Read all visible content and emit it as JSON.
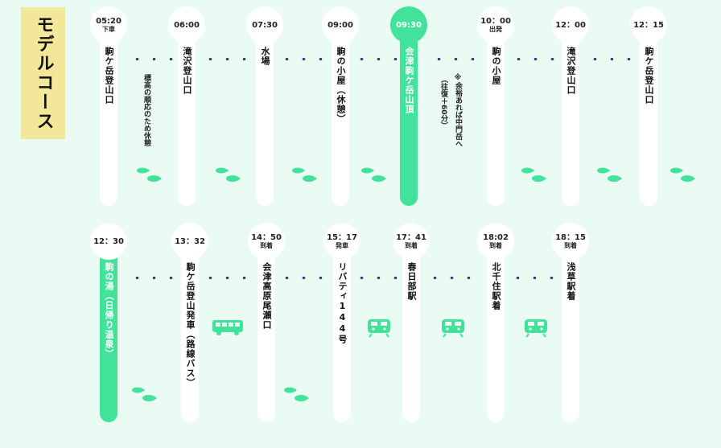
{
  "title": "モデルコース",
  "colors": {
    "accent": "#43e29b",
    "dots": "#1f3c8a",
    "title_bg": "#f3e79a",
    "background": "#e9fbf2"
  },
  "row1": [
    {
      "time": "05:20",
      "note": "下車",
      "label": "駒ケ岳登山口",
      "highlight": false
    },
    {
      "time": "06:00",
      "note": "",
      "label": "滝沢登山口",
      "highlight": false
    },
    {
      "time": "07:30",
      "note": "",
      "label": "水場",
      "highlight": false
    },
    {
      "time": "09:00",
      "note": "",
      "label": "駒の小屋（休憩）",
      "highlight": false
    },
    {
      "time": "09:30",
      "note": "",
      "label": "会津駒ケ岳山頂",
      "highlight": true
    },
    {
      "time": "10：00",
      "note": "出発",
      "label": "駒の小屋",
      "highlight": false
    },
    {
      "time": "12：00",
      "note": "",
      "label": "滝沢登山口",
      "highlight": false
    },
    {
      "time": "12：15",
      "note": "",
      "label": "駒ケ岳登山口",
      "highlight": false
    }
  ],
  "row2": [
    {
      "time": "12：30",
      "note": "",
      "label": "駒の湯（日帰り温泉）",
      "highlight": true
    },
    {
      "time": "13：32",
      "note": "",
      "label": "駒ケ岳登山発車（路線バス）",
      "highlight": false
    },
    {
      "time": "14：50",
      "note": "到着",
      "label": "会津高原尾瀬口",
      "highlight": false
    },
    {
      "time": "15：17",
      "note": "発車",
      "label": "リバティ144号",
      "highlight": false
    },
    {
      "time": "17：41",
      "note": "到着",
      "label": "春日部駅",
      "highlight": false
    },
    {
      "time": "18:02",
      "note": "到着",
      "label": "北千住駅着",
      "highlight": false
    },
    {
      "time": "18：15",
      "note": "到着",
      "label": "浅草駅着",
      "highlight": false
    }
  ],
  "notes": {
    "acclimatize": "標高の順応のため休憩",
    "optional_line1": "※余裕あれば中門岳へ",
    "optional_line2": "（往復＋60分）"
  },
  "icons": [
    "footprints-icon",
    "bus-icon",
    "train-icon"
  ]
}
